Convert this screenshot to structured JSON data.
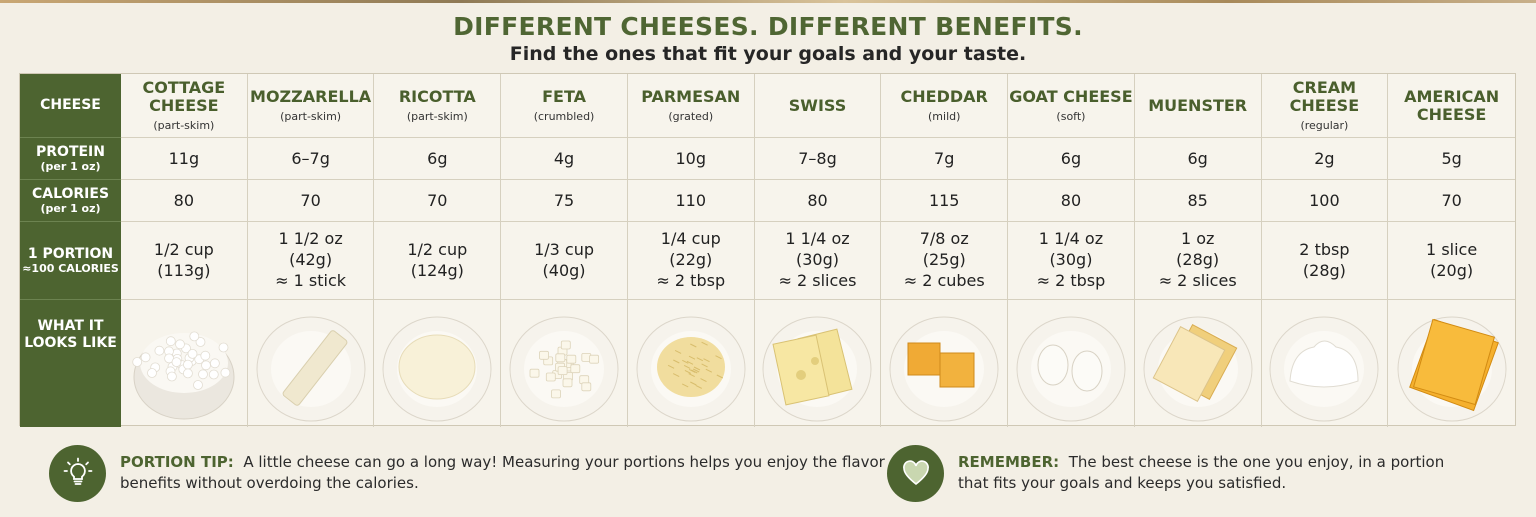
{
  "title": "DIFFERENT CHEESES. DIFFERENT BENEFITS.",
  "subtitle": "Find the ones that fit your goals and your taste.",
  "row_headers": {
    "cheese": "CHEESE",
    "protein": "PROTEIN",
    "protein_sub": "(per 1 oz)",
    "calories": "CALORIES",
    "calories_sub": "(per 1 oz)",
    "portion": "1 PORTION",
    "portion_sub": "≈100 CALORIES",
    "looks_1": "WHAT IT",
    "looks_2": "LOOKS LIKE"
  },
  "cheeses": [
    {
      "name1": "COTTAGE",
      "name2": "CHEESE",
      "sub": "(part-skim)",
      "protein": "11g",
      "calories": "80",
      "p1": "1/2 cup",
      "p2": "(113g)",
      "p3": "",
      "icon": "cottage-cheese-bowl-icon"
    },
    {
      "name1": "MOZZARELLA",
      "name2": "",
      "sub": "(part-skim)",
      "protein": "6–7g",
      "calories": "70",
      "p1": "1 1/2 oz",
      "p2": "(42g)",
      "p3": "≈ 1 stick",
      "icon": "mozzarella-stick-icon"
    },
    {
      "name1": "RICOTTA",
      "name2": "",
      "sub": "(part-skim)",
      "protein": "6g",
      "calories": "70",
      "p1": "1/2 cup",
      "p2": "(124g)",
      "p3": "",
      "icon": "ricotta-plate-icon"
    },
    {
      "name1": "FETA",
      "name2": "",
      "sub": "(crumbled)",
      "protein": "4g",
      "calories": "75",
      "p1": "1/3 cup",
      "p2": "(40g)",
      "p3": "",
      "icon": "feta-crumbles-icon"
    },
    {
      "name1": "PARMESAN",
      "name2": "",
      "sub": "(grated)",
      "protein": "10g",
      "calories": "110",
      "p1": "1/4 cup",
      "p2": "(22g)",
      "p3": "≈ 2 tbsp",
      "icon": "parmesan-grated-icon"
    },
    {
      "name1": "SWISS",
      "name2": "",
      "sub": "",
      "protein": "7–8g",
      "calories": "80",
      "p1": "1 1/4 oz",
      "p2": "(30g)",
      "p3": "≈ 2 slices",
      "icon": "swiss-slices-icon"
    },
    {
      "name1": "CHEDDAR",
      "name2": "",
      "sub": "(mild)",
      "protein": "7g",
      "calories": "115",
      "p1": "7/8 oz",
      "p2": "(25g)",
      "p3": "≈ 2 cubes",
      "icon": "cheddar-cubes-icon"
    },
    {
      "name1": "GOAT CHEESE",
      "name2": "",
      "sub": "(soft)",
      "protein": "6g",
      "calories": "80",
      "p1": "1 1/4 oz",
      "p2": "(30g)",
      "p3": "≈ 2 tbsp",
      "icon": "goat-cheese-rounds-icon"
    },
    {
      "name1": "MUENSTER",
      "name2": "",
      "sub": "",
      "protein": "6g",
      "calories": "85",
      "p1": "1 oz",
      "p2": "(28g)",
      "p3": "≈ 2 slices",
      "icon": "muenster-slices-icon"
    },
    {
      "name1": "CREAM CHEESE",
      "name2": "",
      "sub": "(regular)",
      "protein": "2g",
      "calories": "100",
      "p1": "2 tbsp",
      "p2": "(28g)",
      "p3": "",
      "icon": "cream-cheese-dollop-icon"
    },
    {
      "name1": "AMERICAN",
      "name2": "CHEESE",
      "sub": "",
      "protein": "5g",
      "calories": "70",
      "p1": "1 slice",
      "p2": "(20g)",
      "p3": "",
      "icon": "american-slice-icon"
    }
  ],
  "tip": {
    "label": "PORTION TIP:",
    "line1": "A little cheese can go a long way! Measuring your portions helps you enjoy the flavor and",
    "line2": "benefits without overdoing the calories.",
    "icon": "lightbulb-icon"
  },
  "remember": {
    "label": "REMEMBER:",
    "line1": "The best cheese is the one you enjoy, in a portion",
    "line2": "that fits your goals and keeps you satisfied.",
    "icon": "heart-icon"
  },
  "colors": {
    "accent": "#4d6430",
    "title": "#4f6633",
    "background": "#f3efe5"
  }
}
